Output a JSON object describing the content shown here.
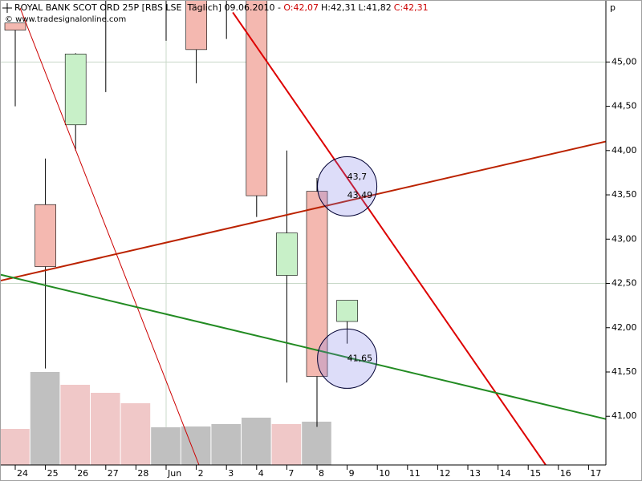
{
  "chart_data": {
    "type": "candlestick",
    "title": "ROYAL BANK SCOT ORD 25P [RBS LSE  Täglich] 09.06.2010 -",
    "ohlc_labels": [
      {
        "text": "O:42,07",
        "color": "#cc0000"
      },
      {
        "text": "H:42,31",
        "color": "#000000"
      },
      {
        "text": "L:41,82",
        "color": "#000000"
      },
      {
        "text": "C:42,31",
        "color": "#cc0000"
      }
    ],
    "source": "© www.tradesignalonline.com",
    "unit": "p",
    "categories": [
      "24",
      "25",
      "26",
      "27",
      "28",
      "Jun",
      "2",
      "3",
      "4",
      "7",
      "8",
      "9",
      "10",
      "11",
      "12",
      "13",
      "14",
      "15",
      "16",
      "17"
    ],
    "open": [
      45.44,
      43.39,
      44.29,
      null,
      null,
      null,
      null,
      null,
      null,
      42.59,
      43.54,
      42.07,
      null,
      null,
      null,
      null,
      null,
      null,
      null,
      null
    ],
    "high": [
      null,
      43.91,
      45.1,
      null,
      null,
      null,
      null,
      null,
      null,
      44.0,
      43.69,
      42.31,
      null,
      null,
      null,
      null,
      null,
      null,
      null,
      null
    ],
    "low": [
      44.5,
      41.54,
      44.0,
      44.66,
      null,
      45.24,
      44.76,
      45.26,
      43.25,
      41.38,
      40.88,
      41.82,
      null,
      null,
      null,
      null,
      null,
      null,
      null,
      null
    ],
    "close": [
      45.36,
      42.69,
      45.09,
      null,
      null,
      null,
      45.14,
      null,
      43.49,
      43.07,
      41.45,
      42.31,
      null,
      null,
      null,
      null,
      null,
      null,
      null,
      null
    ],
    "up_color": "#c8f0c8",
    "down_color": "#f4b8b0",
    "volume": [
      45,
      116,
      100,
      90,
      77,
      47,
      48,
      51,
      59,
      51,
      54,
      null,
      null,
      null,
      null,
      null,
      null,
      null,
      null,
      null
    ],
    "volume_colors": [
      "#f0c8c8",
      "#c0c0c0",
      "#f0c8c8",
      "#f0c8c8",
      "#f0c8c8",
      "#c0c0c0",
      "#c0c0c0",
      "#c0c0c0",
      "#c0c0c0",
      "#f0c8c8",
      "#c0c0c0",
      null,
      null,
      null,
      null,
      null,
      null,
      null,
      null,
      null
    ],
    "ylim": [
      40.45,
      45.7
    ],
    "yticks": [
      {
        "value": 41.0,
        "label": "41,00"
      },
      {
        "value": 41.5,
        "label": "41,50"
      },
      {
        "value": 42.0,
        "label": "42,00"
      },
      {
        "value": 42.5,
        "label": "42,50"
      },
      {
        "value": 43.0,
        "label": "43,00"
      },
      {
        "value": 43.5,
        "label": "43,50"
      },
      {
        "value": 44.0,
        "label": "44,00"
      },
      {
        "value": 44.5,
        "label": "44,50"
      },
      {
        "value": 45.0,
        "label": "45,00"
      }
    ],
    "grid_lines": {
      "y": [
        45.0,
        42.5
      ],
      "x": [
        5
      ]
    },
    "trend_lines": [
      {
        "color": "#cc0000",
        "width": 1,
        "x": [
          0.16,
          6.09
        ],
        "values": [
          45.61,
          40.45
        ]
      },
      {
        "color": "#dd0000",
        "width": 2,
        "x": [
          7.21,
          17.58
        ],
        "values": [
          45.56,
          40.45
        ]
      },
      {
        "color": "#bb2200",
        "width": 2,
        "x": [
          -0.5,
          19.8
        ],
        "values": [
          42.53,
          44.12
        ]
      },
      {
        "color": "#228b22",
        "width": 2,
        "x": [
          -0.5,
          19.8
        ],
        "values": [
          42.6,
          40.95
        ]
      }
    ],
    "annotations": [
      {
        "x": 11,
        "labels": [
          {
            "value": 43.7,
            "label": "43,7",
            "color": "#cc0000"
          },
          {
            "value": 43.49,
            "label": "43,49",
            "color": "#228b22"
          }
        ]
      },
      {
        "x": 11,
        "labels": [
          {
            "value": 41.65,
            "label": "41,65",
            "color": "#228b22"
          }
        ]
      }
    ]
  }
}
